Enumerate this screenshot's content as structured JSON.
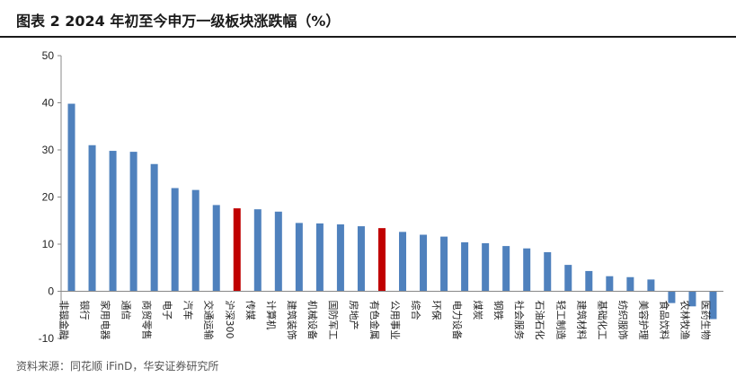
{
  "title": "图表 2 2024 年初至今申万一级板块涨跌幅（%）",
  "source": "资料来源：同花顺 iFinD，华安证券研究所",
  "colors": {
    "bar": "#4f81bd",
    "highlight": "#c00000",
    "axis": "#888888"
  },
  "chart_data": {
    "type": "bar",
    "title": "图表 2 2024 年初至今申万一级板块涨跌幅（%）",
    "xlabel": "",
    "ylabel": "",
    "ylim": [
      -10,
      50
    ],
    "yticks": [
      -10,
      0,
      10,
      20,
      30,
      40,
      50
    ],
    "grid": false,
    "legend": "none",
    "categories": [
      "非银金融",
      "银行",
      "家用电器",
      "通信",
      "商贸零售",
      "电子",
      "汽车",
      "交通运输",
      "沪深300",
      "传媒",
      "计算机",
      "建筑装饰",
      "机械设备",
      "国防军工",
      "房地产",
      "有色金属",
      "公用事业",
      "综合",
      "环保",
      "电力设备",
      "煤炭",
      "钢铁",
      "社会服务",
      "石油石化",
      "轻工制造",
      "建筑材料",
      "基础化工",
      "纺织服饰",
      "美容护理",
      "食品饮料",
      "农林牧渔",
      "医药生物"
    ],
    "values": [
      39.8,
      31.0,
      29.8,
      29.6,
      27.0,
      21.9,
      21.5,
      18.3,
      17.6,
      17.4,
      16.9,
      14.5,
      14.4,
      14.2,
      13.8,
      13.4,
      12.6,
      12.0,
      11.6,
      10.4,
      10.2,
      9.6,
      9.1,
      8.3,
      5.6,
      4.3,
      3.2,
      3.0,
      2.5,
      -2.5,
      -3.2,
      -5.9
    ],
    "highlight": [
      "沪深300",
      "有色金属"
    ]
  }
}
